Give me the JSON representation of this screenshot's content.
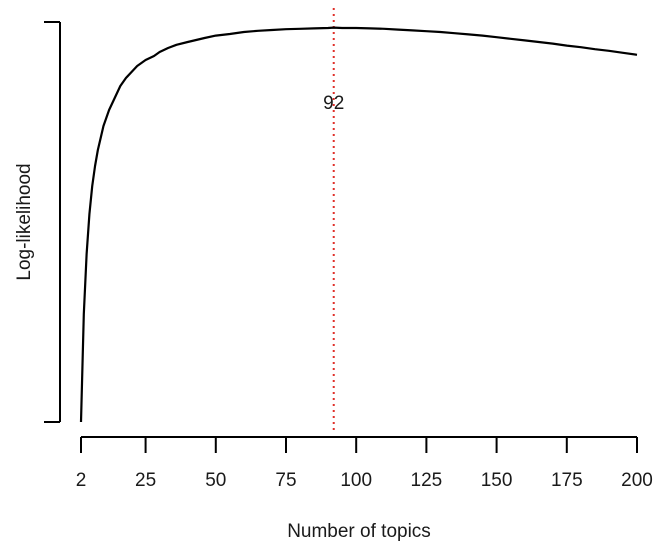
{
  "chart_data": {
    "type": "line",
    "title": "",
    "xlabel": "Number of topics",
    "ylabel": "Log-likelihood",
    "xlim": [
      2,
      200
    ],
    "ylim": [
      0,
      1
    ],
    "y_tick_labels_shown": false,
    "x_ticks": [
      2,
      25,
      50,
      75,
      100,
      125,
      150,
      175,
      200
    ],
    "x_tick_labels": [
      "2",
      "25",
      "50",
      "75",
      "100",
      "125",
      "150",
      "175",
      "200"
    ],
    "grid": false,
    "legend": "none",
    "colors": {
      "line": "#000000",
      "marker": "#e0302a",
      "axis": "#000000"
    },
    "series": [
      {
        "x": [
          2,
          3,
          4,
          5,
          6,
          7,
          8,
          9,
          10,
          12,
          14,
          16,
          18,
          20,
          22,
          25,
          28,
          30,
          33,
          36,
          40,
          43,
          46,
          50,
          55,
          60,
          65,
          70,
          75,
          80,
          85,
          90,
          92,
          95,
          100,
          105,
          110,
          115,
          120,
          125,
          130,
          135,
          140,
          145,
          150,
          155,
          160,
          165,
          170,
          175,
          180,
          185,
          190,
          195,
          200
        ],
        "y": [
          0.0,
          0.27,
          0.42,
          0.52,
          0.59,
          0.64,
          0.68,
          0.71,
          0.74,
          0.78,
          0.81,
          0.84,
          0.86,
          0.875,
          0.89,
          0.905,
          0.915,
          0.925,
          0.935,
          0.943,
          0.95,
          0.955,
          0.96,
          0.966,
          0.97,
          0.975,
          0.978,
          0.98,
          0.982,
          0.983,
          0.984,
          0.985,
          0.986,
          0.985,
          0.985,
          0.984,
          0.983,
          0.981,
          0.979,
          0.977,
          0.975,
          0.972,
          0.969,
          0.966,
          0.962,
          0.958,
          0.954,
          0.95,
          0.946,
          0.941,
          0.937,
          0.932,
          0.928,
          0.923,
          0.918
        ]
      }
    ],
    "annotations": [
      {
        "type": "vline",
        "x": 92,
        "style": "dotted",
        "color": "#e0302a",
        "label": "92"
      }
    ]
  }
}
